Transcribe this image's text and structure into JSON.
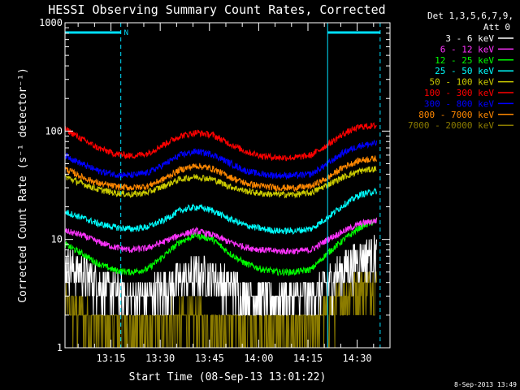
{
  "stamp": "8-Sep-2013 13:49",
  "legend": {
    "title_line1": "Det 1,3,5,6,7,9,",
    "title_line2": "Att 0"
  },
  "chart_data": {
    "type": "line",
    "title": "HESSI Observing Summary Count Rates, Corrected",
    "xlabel": "Start Time (08-Sep-13 13:01:22)",
    "ylabel": "Corrected Count Rate (s⁻¹ detector⁻¹)",
    "yscale": "log",
    "ylim": [
      1,
      1000
    ],
    "xlim_minutes": [
      0,
      99
    ],
    "x_ticks": [
      "13:15",
      "13:30",
      "13:45",
      "14:00",
      "14:15",
      "14:30"
    ],
    "x_tick_minutes": [
      14,
      29,
      44,
      59,
      74,
      89
    ],
    "y_ticks": [
      "1",
      "10",
      "100",
      "1000"
    ],
    "y_tick_values": [
      1,
      10,
      100,
      1000
    ],
    "night_intervals_minutes": [
      [
        0,
        17
      ],
      [
        80,
        96
      ]
    ],
    "saa_marker": "N",
    "series": [
      {
        "name": "3 - 6 keV",
        "color": "#ffffff",
        "x_minutes": [
          0,
          5,
          10,
          15,
          20,
          25,
          30,
          35,
          40,
          45,
          50,
          55,
          60,
          65,
          70,
          75,
          80,
          85,
          90,
          95
        ],
        "values": [
          6,
          5,
          4,
          3.3,
          3,
          3.1,
          3.6,
          4.3,
          4.8,
          4.5,
          3.8,
          3.2,
          3,
          2.9,
          2.9,
          3,
          4,
          5.5,
          7,
          7.5
        ]
      },
      {
        "name": "6 - 12 keV",
        "color": "#ff33ff",
        "x_minutes": [
          0,
          5,
          10,
          15,
          20,
          25,
          30,
          35,
          40,
          45,
          50,
          55,
          60,
          65,
          70,
          75,
          80,
          85,
          90,
          95
        ],
        "values": [
          12,
          11,
          9.5,
          8.5,
          8,
          8.3,
          9.5,
          11,
          12,
          11,
          9.5,
          8.5,
          8,
          7.8,
          7.8,
          8,
          10,
          12,
          14,
          15
        ]
      },
      {
        "name": "12 - 25 keV",
        "color": "#00ff00",
        "x_minutes": [
          0,
          5,
          10,
          15,
          20,
          25,
          30,
          35,
          40,
          45,
          50,
          55,
          60,
          65,
          70,
          75,
          80,
          85,
          90,
          95
        ],
        "values": [
          9,
          7.5,
          6,
          5.2,
          5,
          5.3,
          7,
          9.5,
          11,
          10,
          7.5,
          6,
          5.3,
          5,
          5,
          5.3,
          7.5,
          10,
          13,
          15
        ]
      },
      {
        "name": "25 - 50 keV",
        "color": "#00ffff",
        "x_minutes": [
          0,
          5,
          10,
          15,
          20,
          25,
          30,
          35,
          40,
          45,
          50,
          55,
          60,
          65,
          70,
          75,
          80,
          85,
          90,
          95
        ],
        "values": [
          18,
          16,
          14,
          13,
          12.5,
          13,
          15,
          18.5,
          20,
          18.5,
          15.5,
          13.5,
          12.5,
          12,
          12,
          12.5,
          16,
          21,
          26,
          28
        ]
      },
      {
        "name": "50 - 100 keV",
        "color": "#cccc00",
        "x_minutes": [
          0,
          5,
          10,
          15,
          20,
          25,
          30,
          35,
          40,
          45,
          50,
          55,
          60,
          65,
          70,
          75,
          80,
          85,
          90,
          95
        ],
        "values": [
          38,
          33,
          29,
          27,
          26,
          27,
          31,
          36,
          38,
          36,
          31,
          28,
          26.5,
          26,
          26,
          27,
          32,
          38,
          43,
          45
        ]
      },
      {
        "name": "100 - 300 keV",
        "color": "#ff0000",
        "x_minutes": [
          0,
          5,
          10,
          15,
          20,
          25,
          30,
          35,
          40,
          45,
          50,
          55,
          60,
          65,
          70,
          75,
          80,
          85,
          90,
          95
        ],
        "values": [
          105,
          85,
          70,
          62,
          59,
          62,
          75,
          90,
          97,
          92,
          77,
          65,
          59,
          57,
          57,
          60,
          75,
          95,
          110,
          112
        ]
      },
      {
        "name": "300 - 800 keV",
        "color": "#0000ff",
        "x_minutes": [
          0,
          5,
          10,
          15,
          20,
          25,
          30,
          35,
          40,
          45,
          50,
          55,
          60,
          65,
          70,
          75,
          80,
          85,
          90,
          95
        ],
        "values": [
          60,
          50,
          43,
          40,
          39,
          41,
          49,
          60,
          65,
          61,
          51,
          43,
          40,
          39,
          39,
          40,
          50,
          64,
          74,
          77
        ]
      },
      {
        "name": "800 - 7000 keV",
        "color": "#ff8800",
        "x_minutes": [
          0,
          5,
          10,
          15,
          20,
          25,
          30,
          35,
          40,
          45,
          50,
          55,
          60,
          65,
          70,
          75,
          80,
          85,
          90,
          95
        ],
        "values": [
          45,
          38,
          33,
          31,
          30,
          31,
          36,
          44,
          48,
          45,
          38,
          33,
          31,
          30,
          30,
          31,
          37,
          47,
          54,
          56
        ]
      },
      {
        "name": "7000 - 20000 keV",
        "color": "#8c7c00",
        "x_minutes": [
          0,
          5,
          10,
          15,
          20,
          25,
          30,
          35,
          40,
          45,
          50,
          55,
          60,
          65,
          70,
          75,
          80,
          85,
          90,
          95
        ],
        "values": [
          2.5,
          2,
          1.7,
          1.6,
          1.5,
          1.6,
          1.8,
          1.9,
          1.9,
          1.8,
          1.7,
          1.6,
          1.5,
          1.5,
          1.5,
          1.6,
          2.1,
          3,
          3.8,
          4
        ]
      }
    ]
  }
}
